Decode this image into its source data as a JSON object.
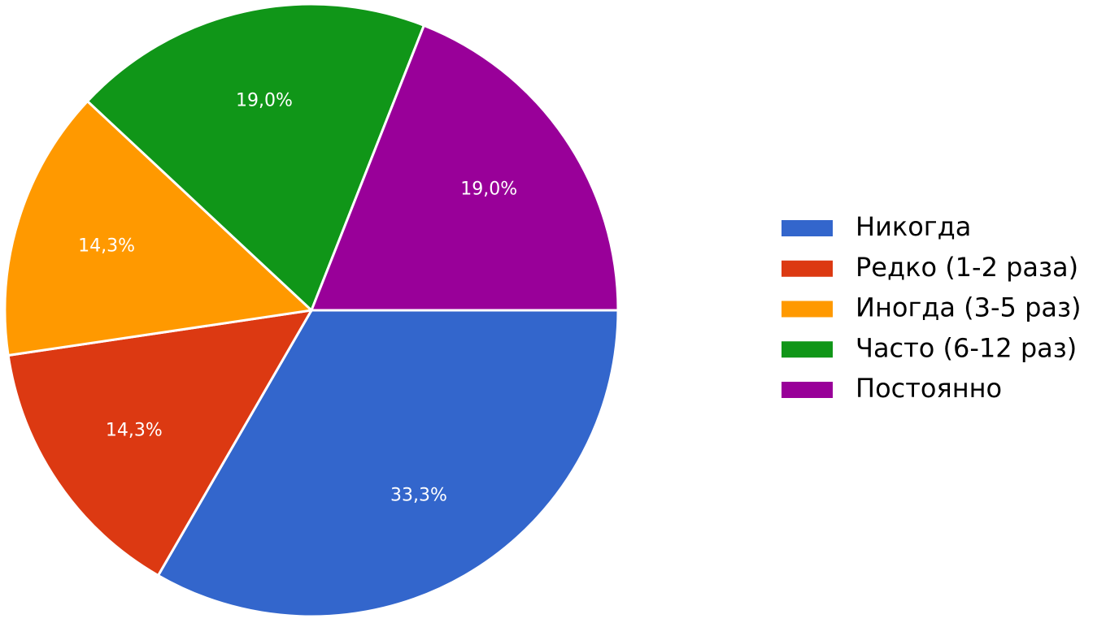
{
  "chart_data": {
    "type": "pie",
    "categories": [
      "Никогда",
      "Редко (1-2 раза)",
      "Иногда (3-5 раз)",
      "Часто (6-12 раз)",
      "Постоянно"
    ],
    "values": [
      33.3,
      14.3,
      14.3,
      19.0,
      19.0
    ],
    "value_labels": [
      "33,3%",
      "14,3%",
      "14,3%",
      "19,0%",
      "19,0%"
    ],
    "colors": [
      "#3366cc",
      "#dc3912",
      "#ff9900",
      "#109618",
      "#990099"
    ]
  }
}
